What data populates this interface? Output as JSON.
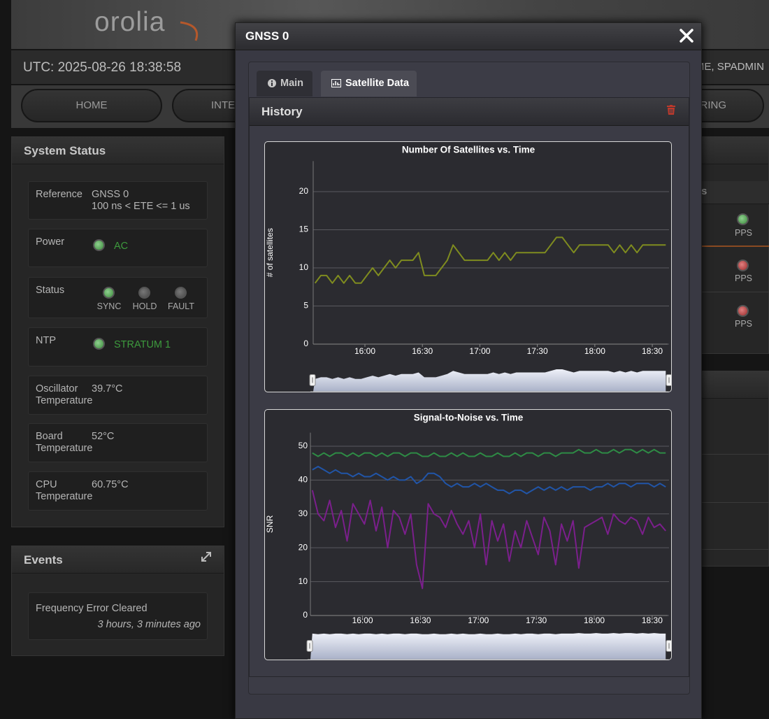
{
  "header": {
    "logo": "orolia",
    "utc": "UTC: 2025-08-26 18:38:58",
    "user": "ME, SPADMIN"
  },
  "nav": [
    "HOME",
    "INTE",
    "RING"
  ],
  "system_status": {
    "title": "System Status",
    "reference": {
      "label": "Reference",
      "value": "GNSS 0",
      "detail": "100 ns < ETE <= 1 us"
    },
    "power": {
      "label": "Power",
      "value": "AC"
    },
    "status": {
      "label": "Status",
      "indicators": [
        "SYNC",
        "HOLD",
        "FAULT"
      ]
    },
    "ntp": {
      "label": "NTP",
      "value": "STRATUM 1"
    },
    "oscillator": {
      "label": "Oscillator Temperature",
      "value": "39.7°C"
    },
    "board": {
      "label": "Board Temperature",
      "value": "52°C"
    },
    "cpu": {
      "label": "CPU Temperature",
      "value": "60.75°C"
    }
  },
  "events": {
    "title": "Events",
    "items": [
      {
        "text": "Frequency Error Cleared",
        "time": "3 hours, 3 minutes ago"
      }
    ]
  },
  "right_panel": {
    "heading": "s",
    "pps": [
      "PPS",
      "PPS",
      "PPS"
    ]
  },
  "modal": {
    "title": "GNSS 0",
    "tabs": [
      "Main",
      "Satellite Data"
    ],
    "section": "History"
  },
  "chart_data": [
    {
      "type": "line",
      "title": "Number Of Satellites vs. Time",
      "y_label": "# of satellites",
      "x": [
        "15:34",
        "15:37",
        "15:40",
        "15:43",
        "15:46",
        "15:49",
        "15:52",
        "15:55",
        "15:58",
        "16:01",
        "16:04",
        "16:07",
        "16:10",
        "16:13",
        "16:16",
        "16:19",
        "16:22",
        "16:25",
        "16:28",
        "16:31",
        "16:34",
        "16:37",
        "16:40",
        "16:43",
        "16:46",
        "16:49",
        "16:52",
        "16:55",
        "16:58",
        "17:01",
        "17:04",
        "17:07",
        "17:10",
        "17:13",
        "17:16",
        "17:19",
        "17:22",
        "17:25",
        "17:28",
        "17:31",
        "17:34",
        "17:37",
        "17:40",
        "17:43",
        "17:46",
        "17:49",
        "17:52",
        "17:55",
        "17:58",
        "18:01",
        "18:04",
        "18:07",
        "18:10",
        "18:13",
        "18:16",
        "18:19",
        "18:22",
        "18:25",
        "18:28",
        "18:31",
        "18:34",
        "18:37"
      ],
      "values": [
        8,
        9,
        9,
        8,
        9,
        8,
        9,
        8,
        8,
        9,
        10,
        9,
        10,
        11,
        10,
        11,
        11,
        11,
        12,
        9,
        9,
        9,
        10,
        11,
        13,
        12,
        11,
        11,
        11,
        11,
        11,
        12,
        11,
        12,
        11,
        12,
        12,
        12,
        12,
        12,
        12,
        13,
        14,
        14,
        13,
        12,
        13,
        13,
        13,
        13,
        13,
        13,
        12,
        13,
        12,
        13,
        12,
        13,
        13,
        13,
        13,
        13
      ],
      "color": "#7f8c1f",
      "xlim": [
        "15:33",
        "18:38"
      ],
      "xticks": [
        "16:00",
        "16:30",
        "17:00",
        "17:30",
        "18:00",
        "18:30"
      ],
      "ylim": [
        0,
        24
      ],
      "yticks": [
        0,
        5,
        10,
        15,
        20
      ],
      "grid": true
    },
    {
      "type": "line",
      "title": "Signal-to-Noise vs. Time",
      "y_label": "SNR",
      "x": [
        "15:34",
        "15:37",
        "15:40",
        "15:43",
        "15:46",
        "15:49",
        "15:52",
        "15:55",
        "15:58",
        "16:01",
        "16:04",
        "16:07",
        "16:10",
        "16:13",
        "16:16",
        "16:19",
        "16:22",
        "16:25",
        "16:28",
        "16:31",
        "16:34",
        "16:37",
        "16:40",
        "16:43",
        "16:46",
        "16:49",
        "16:52",
        "16:55",
        "16:58",
        "17:01",
        "17:04",
        "17:07",
        "17:10",
        "17:13",
        "17:16",
        "17:19",
        "17:22",
        "17:25",
        "17:28",
        "17:31",
        "17:34",
        "17:37",
        "17:40",
        "17:43",
        "17:46",
        "17:49",
        "17:52",
        "17:55",
        "17:58",
        "18:01",
        "18:04",
        "18:07",
        "18:10",
        "18:13",
        "18:16",
        "18:19",
        "18:22",
        "18:25",
        "18:28",
        "18:31",
        "18:34",
        "18:37"
      ],
      "series": [
        {
          "color": "#2e8b45",
          "values": [
            48,
            47,
            48,
            47,
            48,
            48,
            47,
            48,
            47,
            48,
            48,
            47,
            48,
            47,
            48,
            48,
            47,
            48,
            48,
            47,
            47,
            48,
            47,
            47,
            48,
            47,
            48,
            47,
            47,
            48,
            47,
            47,
            48,
            47,
            47,
            48,
            47,
            48,
            48,
            47,
            48,
            48,
            47,
            48,
            48,
            48,
            49,
            48,
            48,
            49,
            48,
            48,
            49,
            48,
            49,
            49,
            48,
            49,
            48,
            49,
            48,
            48
          ]
        },
        {
          "color": "#2155a8",
          "values": [
            43,
            44,
            43,
            42,
            43,
            42,
            42,
            41,
            42,
            41,
            41,
            42,
            41,
            40,
            41,
            40,
            40,
            41,
            39,
            40,
            42,
            42,
            41,
            39,
            38,
            39,
            38,
            38,
            39,
            38,
            39,
            38,
            37,
            37,
            36,
            37,
            37,
            36,
            37,
            38,
            37,
            38,
            37,
            38,
            37,
            38,
            38,
            38,
            37,
            38,
            38,
            39,
            38,
            39,
            39,
            38,
            39,
            39,
            39,
            38,
            39,
            38
          ]
        },
        {
          "color": "#7b1f8c",
          "values": [
            37,
            30,
            28,
            34,
            26,
            31,
            22,
            33,
            30,
            27,
            34,
            25,
            32,
            20,
            31,
            29,
            24,
            30,
            15,
            8,
            33,
            30,
            29,
            26,
            31,
            27,
            24,
            28,
            20,
            30,
            15,
            28,
            22,
            27,
            16,
            25,
            20,
            28,
            23,
            18,
            29,
            25,
            15,
            27,
            22,
            28,
            14,
            26,
            27,
            28,
            29,
            24,
            30,
            28,
            27,
            29,
            28,
            24,
            29,
            26,
            27,
            25
          ]
        }
      ],
      "xlim": [
        "15:33",
        "18:38"
      ],
      "xticks": [
        "16:00",
        "16:30",
        "17:00",
        "17:30",
        "18:00",
        "18:30"
      ],
      "ylim": [
        0,
        54
      ],
      "yticks": [
        0,
        10,
        20,
        30,
        40,
        50
      ],
      "grid": true
    }
  ]
}
